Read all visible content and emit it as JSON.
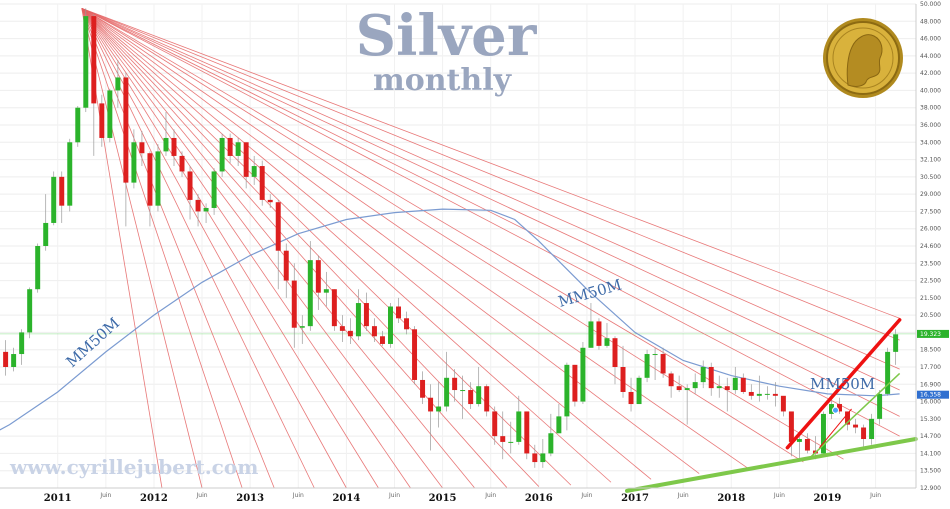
{
  "title": "Silver",
  "subtitle": "monthly",
  "watermark": "www.cyrillejubert.com",
  "chart_data": {
    "type": "candlestick",
    "ylim": [
      12.9,
      50.5
    ],
    "yticks": [
      12.9,
      13.5,
      14.1,
      14.7,
      15.3,
      16.0,
      16.9,
      17.7,
      18.5,
      19.4,
      20.5,
      21.5,
      22.5,
      23.5,
      24.6,
      26.0,
      27.5,
      29.0,
      30.5,
      32.1,
      34.0,
      36.0,
      38.0,
      40.0,
      42.0,
      44.0,
      46.0,
      48.0,
      50.0
    ],
    "ytick_labels": [
      "12.900",
      "13.500",
      "14.100",
      "14.700",
      "15.300",
      "16.000",
      "16.900",
      "17.700",
      "18.500",
      "19.400",
      "20.500",
      "21.500",
      "22.500",
      "23.500",
      "24.600",
      "26.000",
      "27.500",
      "29.000",
      "30.500",
      "32.100",
      "34.000",
      "36.000",
      "38.000",
      "40.000",
      "42.000",
      "44.000",
      "46.000",
      "48.000",
      "50.000"
    ],
    "x_labels": [
      {
        "t": 2011,
        "label": "2011",
        "kind": "year"
      },
      {
        "t": 2011.5,
        "label": "Juin",
        "kind": "month"
      },
      {
        "t": 2012,
        "label": "2012",
        "kind": "year"
      },
      {
        "t": 2012.5,
        "label": "Juin",
        "kind": "month"
      },
      {
        "t": 2013,
        "label": "2013",
        "kind": "year"
      },
      {
        "t": 2013.5,
        "label": "Juin",
        "kind": "month"
      },
      {
        "t": 2014,
        "label": "2014",
        "kind": "year"
      },
      {
        "t": 2014.5,
        "label": "Juin",
        "kind": "month"
      },
      {
        "t": 2015,
        "label": "2015",
        "kind": "year"
      },
      {
        "t": 2015.5,
        "label": "Juin",
        "kind": "month"
      },
      {
        "t": 2016,
        "label": "2016",
        "kind": "year"
      },
      {
        "t": 2016.5,
        "label": "Juin",
        "kind": "month"
      },
      {
        "t": 2017,
        "label": "2017",
        "kind": "year"
      },
      {
        "t": 2017.5,
        "label": "Juin",
        "kind": "month"
      },
      {
        "t": 2018,
        "label": "2018",
        "kind": "year"
      },
      {
        "t": 2018.5,
        "label": "Juin",
        "kind": "month"
      },
      {
        "t": 2019,
        "label": "2019",
        "kind": "year"
      },
      {
        "t": 2019.5,
        "label": "Juin",
        "kind": "month"
      }
    ],
    "candles": [
      {
        "date": "2010-06",
        "o": 18.4,
        "c": 17.7,
        "h": 19.0,
        "l": 17.3
      },
      {
        "date": "2010-07",
        "o": 17.7,
        "c": 18.3,
        "h": 18.6,
        "l": 17.5
      },
      {
        "date": "2010-08",
        "o": 18.3,
        "c": 19.4,
        "h": 19.6,
        "l": 17.8
      },
      {
        "date": "2010-09",
        "o": 19.4,
        "c": 22.0,
        "h": 22.1,
        "l": 19.1
      },
      {
        "date": "2010-10",
        "o": 22.0,
        "c": 24.6,
        "h": 24.8,
        "l": 21.8
      },
      {
        "date": "2010-11",
        "o": 24.6,
        "c": 26.5,
        "h": 29.0,
        "l": 24.3
      },
      {
        "date": "2010-12",
        "o": 26.5,
        "c": 30.5,
        "h": 31.0,
        "l": 26.3
      },
      {
        "date": "2011-01",
        "o": 30.5,
        "c": 28.0,
        "h": 31.0,
        "l": 26.5
      },
      {
        "date": "2011-02",
        "o": 28.0,
        "c": 34.0,
        "h": 34.4,
        "l": 27.5
      },
      {
        "date": "2011-03",
        "o": 34.0,
        "c": 38.0,
        "h": 38.2,
        "l": 33.5
      },
      {
        "date": "2011-04",
        "o": 38.0,
        "c": 48.6,
        "h": 49.5,
        "l": 37.5
      },
      {
        "date": "2011-05",
        "o": 48.6,
        "c": 38.5,
        "h": 48.8,
        "l": 32.5
      },
      {
        "date": "2011-06",
        "o": 38.5,
        "c": 34.5,
        "h": 39.5,
        "l": 33.5
      },
      {
        "date": "2011-07",
        "o": 34.5,
        "c": 40.0,
        "h": 40.2,
        "l": 34.0
      },
      {
        "date": "2011-08",
        "o": 40.0,
        "c": 41.5,
        "h": 43.5,
        "l": 38.0
      },
      {
        "date": "2011-09",
        "o": 41.5,
        "c": 30.0,
        "h": 42.0,
        "l": 26.2
      },
      {
        "date": "2011-10",
        "o": 30.0,
        "c": 34.0,
        "h": 35.5,
        "l": 29.5
      },
      {
        "date": "2011-11",
        "o": 34.0,
        "c": 32.8,
        "h": 35.3,
        "l": 31.5
      },
      {
        "date": "2011-12",
        "o": 32.8,
        "c": 28.0,
        "h": 33.0,
        "l": 26.2
      },
      {
        "date": "2012-01",
        "o": 28.0,
        "c": 33.0,
        "h": 33.8,
        "l": 27.5
      },
      {
        "date": "2012-02",
        "o": 33.0,
        "c": 34.5,
        "h": 37.5,
        "l": 32.5
      },
      {
        "date": "2012-03",
        "o": 34.5,
        "c": 32.5,
        "h": 35.5,
        "l": 31.5
      },
      {
        "date": "2012-04",
        "o": 32.5,
        "c": 31.0,
        "h": 33.0,
        "l": 30.5
      },
      {
        "date": "2012-05",
        "o": 31.0,
        "c": 28.5,
        "h": 31.5,
        "l": 26.8
      },
      {
        "date": "2012-06",
        "o": 28.5,
        "c": 27.5,
        "h": 29.0,
        "l": 26.2
      },
      {
        "date": "2012-07",
        "o": 27.5,
        "c": 27.8,
        "h": 28.2,
        "l": 26.5
      },
      {
        "date": "2012-08",
        "o": 27.8,
        "c": 31.0,
        "h": 31.3,
        "l": 27.2
      },
      {
        "date": "2012-09",
        "o": 31.0,
        "c": 34.5,
        "h": 35.0,
        "l": 30.5
      },
      {
        "date": "2012-10",
        "o": 34.5,
        "c": 32.5,
        "h": 35.0,
        "l": 31.8
      },
      {
        "date": "2012-11",
        "o": 32.5,
        "c": 34.0,
        "h": 34.5,
        "l": 31.5
      },
      {
        "date": "2012-12",
        "o": 34.0,
        "c": 30.5,
        "h": 34.0,
        "l": 29.5
      },
      {
        "date": "2013-01",
        "o": 30.5,
        "c": 31.5,
        "h": 32.5,
        "l": 29.8
      },
      {
        "date": "2013-02",
        "o": 31.5,
        "c": 28.5,
        "h": 32.0,
        "l": 28.0
      },
      {
        "date": "2013-03",
        "o": 28.5,
        "c": 28.3,
        "h": 29.0,
        "l": 27.8
      },
      {
        "date": "2013-04",
        "o": 28.3,
        "c": 24.3,
        "h": 28.5,
        "l": 22.0
      },
      {
        "date": "2013-05",
        "o": 24.3,
        "c": 22.5,
        "h": 24.8,
        "l": 21.5
      },
      {
        "date": "2013-06",
        "o": 22.5,
        "c": 19.7,
        "h": 23.5,
        "l": 18.6
      },
      {
        "date": "2013-07",
        "o": 19.7,
        "c": 19.8,
        "h": 20.5,
        "l": 18.8
      },
      {
        "date": "2013-08",
        "o": 19.8,
        "c": 23.7,
        "h": 25.0,
        "l": 19.5
      },
      {
        "date": "2013-09",
        "o": 23.7,
        "c": 21.8,
        "h": 24.0,
        "l": 20.8
      },
      {
        "date": "2013-10",
        "o": 21.8,
        "c": 22.0,
        "h": 23.0,
        "l": 21.0
      },
      {
        "date": "2013-11",
        "o": 22.0,
        "c": 19.8,
        "h": 22.0,
        "l": 19.5
      },
      {
        "date": "2013-12",
        "o": 19.8,
        "c": 19.5,
        "h": 20.5,
        "l": 18.9
      },
      {
        "date": "2014-01",
        "o": 19.5,
        "c": 19.2,
        "h": 20.3,
        "l": 18.8
      },
      {
        "date": "2014-02",
        "o": 19.2,
        "c": 21.2,
        "h": 22.0,
        "l": 19.0
      },
      {
        "date": "2014-03",
        "o": 21.2,
        "c": 19.8,
        "h": 21.8,
        "l": 19.5
      },
      {
        "date": "2014-04",
        "o": 19.8,
        "c": 19.2,
        "h": 20.3,
        "l": 18.9
      },
      {
        "date": "2014-05",
        "o": 19.2,
        "c": 18.8,
        "h": 19.5,
        "l": 18.7
      },
      {
        "date": "2014-06",
        "o": 18.8,
        "c": 21.0,
        "h": 21.2,
        "l": 18.6
      },
      {
        "date": "2014-07",
        "o": 21.0,
        "c": 20.3,
        "h": 21.5,
        "l": 20.0
      },
      {
        "date": "2014-08",
        "o": 20.3,
        "c": 19.6,
        "h": 20.7,
        "l": 19.3
      },
      {
        "date": "2014-09",
        "o": 19.6,
        "c": 17.1,
        "h": 19.8,
        "l": 16.9
      },
      {
        "date": "2014-10",
        "o": 17.1,
        "c": 16.2,
        "h": 17.5,
        "l": 15.9
      },
      {
        "date": "2014-11",
        "o": 16.2,
        "c": 15.6,
        "h": 16.9,
        "l": 14.2
      },
      {
        "date": "2014-12",
        "o": 15.6,
        "c": 15.8,
        "h": 17.0,
        "l": 15.0
      },
      {
        "date": "2015-01",
        "o": 15.8,
        "c": 17.2,
        "h": 18.4,
        "l": 15.6
      },
      {
        "date": "2015-02",
        "o": 17.2,
        "c": 16.6,
        "h": 17.6,
        "l": 16.0
      },
      {
        "date": "2015-03",
        "o": 16.6,
        "c": 16.6,
        "h": 17.3,
        "l": 15.3
      },
      {
        "date": "2015-04",
        "o": 16.6,
        "c": 15.9,
        "h": 17.0,
        "l": 15.7
      },
      {
        "date": "2015-05",
        "o": 15.9,
        "c": 16.8,
        "h": 17.7,
        "l": 15.8
      },
      {
        "date": "2015-06",
        "o": 16.8,
        "c": 15.6,
        "h": 16.9,
        "l": 15.4
      },
      {
        "date": "2015-07",
        "o": 15.6,
        "c": 14.7,
        "h": 15.8,
        "l": 14.4
      },
      {
        "date": "2015-08",
        "o": 14.7,
        "c": 14.5,
        "h": 15.6,
        "l": 13.9
      },
      {
        "date": "2015-09",
        "o": 14.5,
        "c": 14.5,
        "h": 15.2,
        "l": 14.1
      },
      {
        "date": "2015-10",
        "o": 14.5,
        "c": 15.6,
        "h": 16.3,
        "l": 14.4
      },
      {
        "date": "2015-11",
        "o": 15.6,
        "c": 14.1,
        "h": 15.6,
        "l": 13.9
      },
      {
        "date": "2015-12",
        "o": 14.1,
        "c": 13.8,
        "h": 14.4,
        "l": 13.6
      },
      {
        "date": "2016-01",
        "o": 13.8,
        "c": 14.1,
        "h": 14.6,
        "l": 13.6
      },
      {
        "date": "2016-02",
        "o": 14.1,
        "c": 14.8,
        "h": 15.5,
        "l": 14.0
      },
      {
        "date": "2016-03",
        "o": 14.8,
        "c": 15.4,
        "h": 15.9,
        "l": 14.8
      },
      {
        "date": "2016-04",
        "o": 15.4,
        "c": 17.8,
        "h": 17.9,
        "l": 14.9
      },
      {
        "date": "2016-05",
        "o": 17.8,
        "c": 16.0,
        "h": 17.8,
        "l": 15.8
      },
      {
        "date": "2016-06",
        "o": 16.0,
        "c": 18.6,
        "h": 18.9,
        "l": 15.9
      },
      {
        "date": "2016-07",
        "o": 18.6,
        "c": 20.1,
        "h": 21.2,
        "l": 18.6
      },
      {
        "date": "2016-08",
        "o": 20.1,
        "c": 18.7,
        "h": 20.3,
        "l": 18.5
      },
      {
        "date": "2016-09",
        "o": 18.7,
        "c": 19.1,
        "h": 20.0,
        "l": 18.6
      },
      {
        "date": "2016-10",
        "o": 19.1,
        "c": 17.7,
        "h": 19.2,
        "l": 16.9
      },
      {
        "date": "2016-11",
        "o": 17.7,
        "c": 16.5,
        "h": 18.7,
        "l": 16.2
      },
      {
        "date": "2016-12",
        "o": 16.5,
        "c": 15.9,
        "h": 17.2,
        "l": 15.6
      },
      {
        "date": "2017-01",
        "o": 15.9,
        "c": 17.2,
        "h": 17.3,
        "l": 15.9
      },
      {
        "date": "2017-02",
        "o": 17.2,
        "c": 18.3,
        "h": 18.5,
        "l": 17.0
      },
      {
        "date": "2017-03",
        "o": 18.3,
        "c": 18.3,
        "h": 18.6,
        "l": 17.1
      },
      {
        "date": "2017-04",
        "o": 18.3,
        "c": 17.4,
        "h": 18.6,
        "l": 17.2
      },
      {
        "date": "2017-05",
        "o": 17.4,
        "c": 16.8,
        "h": 17.5,
        "l": 16.2
      },
      {
        "date": "2017-06",
        "o": 16.8,
        "c": 16.6,
        "h": 17.3,
        "l": 16.5
      },
      {
        "date": "2017-07",
        "o": 16.6,
        "c": 16.7,
        "h": 16.9,
        "l": 15.1
      },
      {
        "date": "2017-08",
        "o": 16.7,
        "c": 17.0,
        "h": 17.4,
        "l": 16.4
      },
      {
        "date": "2017-09",
        "o": 17.0,
        "c": 17.7,
        "h": 18.0,
        "l": 16.7
      },
      {
        "date": "2017-10",
        "o": 17.7,
        "c": 16.7,
        "h": 17.9,
        "l": 16.3
      },
      {
        "date": "2017-11",
        "o": 16.7,
        "c": 16.8,
        "h": 17.3,
        "l": 16.2
      },
      {
        "date": "2017-12",
        "o": 16.8,
        "c": 16.6,
        "h": 17.2,
        "l": 15.6
      },
      {
        "date": "2018-01",
        "o": 16.6,
        "c": 17.2,
        "h": 17.7,
        "l": 16.4
      },
      {
        "date": "2018-02",
        "o": 17.2,
        "c": 16.5,
        "h": 17.4,
        "l": 16.4
      },
      {
        "date": "2018-03",
        "o": 16.5,
        "c": 16.3,
        "h": 16.9,
        "l": 16.1
      },
      {
        "date": "2018-04",
        "o": 16.3,
        "c": 16.4,
        "h": 17.3,
        "l": 16.0
      },
      {
        "date": "2018-05",
        "o": 16.4,
        "c": 16.4,
        "h": 16.8,
        "l": 16.1
      },
      {
        "date": "2018-06",
        "o": 16.4,
        "c": 16.3,
        "h": 17.0,
        "l": 15.8
      },
      {
        "date": "2018-07",
        "o": 16.3,
        "c": 15.6,
        "h": 16.0,
        "l": 15.4
      },
      {
        "date": "2018-08",
        "o": 15.6,
        "c": 14.5,
        "h": 15.4,
        "l": 14.0
      },
      {
        "date": "2018-09",
        "o": 14.5,
        "c": 14.6,
        "h": 14.8,
        "l": 13.9
      },
      {
        "date": "2018-10",
        "o": 14.6,
        "c": 14.2,
        "h": 14.8,
        "l": 14.1
      },
      {
        "date": "2018-11",
        "o": 14.2,
        "c": 14.1,
        "h": 14.7,
        "l": 13.9
      },
      {
        "date": "2018-12",
        "o": 14.1,
        "c": 15.5,
        "h": 15.6,
        "l": 14.1
      },
      {
        "date": "2019-01",
        "o": 15.5,
        "c": 15.9,
        "h": 16.2,
        "l": 15.3
      },
      {
        "date": "2019-02",
        "o": 15.9,
        "c": 15.6,
        "h": 16.2,
        "l": 15.5
      },
      {
        "date": "2019-03",
        "o": 15.6,
        "c": 15.1,
        "h": 15.6,
        "l": 14.9
      },
      {
        "date": "2019-04",
        "o": 15.1,
        "c": 15.0,
        "h": 15.3,
        "l": 14.8
      },
      {
        "date": "2019-05",
        "o": 15.0,
        "c": 14.6,
        "h": 15.1,
        "l": 14.3
      },
      {
        "date": "2019-06",
        "o": 14.6,
        "c": 15.3,
        "h": 15.5,
        "l": 14.4
      },
      {
        "date": "2019-07",
        "o": 15.3,
        "c": 16.4,
        "h": 16.6,
        "l": 15.1
      },
      {
        "date": "2019-08",
        "o": 16.4,
        "c": 18.4,
        "h": 18.6,
        "l": 16.3
      },
      {
        "date": "2019-09",
        "o": 18.4,
        "c": 19.3,
        "h": 19.6,
        "l": 17.8
      }
    ],
    "ma_label": "MM50M",
    "ma50": [
      {
        "date": "2010-01",
        "v": 14.2
      },
      {
        "date": "2010-07",
        "v": 15.1
      },
      {
        "date": "2011-01",
        "v": 16.5
      },
      {
        "date": "2011-07",
        "v": 18.4
      },
      {
        "date": "2012-01",
        "v": 20.5
      },
      {
        "date": "2012-07",
        "v": 22.4
      },
      {
        "date": "2013-01",
        "v": 24.0
      },
      {
        "date": "2013-07",
        "v": 25.6
      },
      {
        "date": "2014-01",
        "v": 26.8
      },
      {
        "date": "2014-07",
        "v": 27.4
      },
      {
        "date": "2015-01",
        "v": 27.7
      },
      {
        "date": "2015-07",
        "v": 27.6
      },
      {
        "date": "2015-10",
        "v": 26.8
      },
      {
        "date": "2016-01",
        "v": 25.0
      },
      {
        "date": "2016-07",
        "v": 22.0
      },
      {
        "date": "2017-01",
        "v": 19.4
      },
      {
        "date": "2017-07",
        "v": 18.0
      },
      {
        "date": "2018-01",
        "v": 17.3
      },
      {
        "date": "2018-07",
        "v": 16.8
      },
      {
        "date": "2019-01",
        "v": 16.4
      },
      {
        "date": "2019-07",
        "v": 16.3
      },
      {
        "date": "2019-10",
        "v": 16.4
      }
    ],
    "current_price": {
      "value": 19.323,
      "label": "19.323"
    },
    "ma_price": {
      "value": 16.358,
      "label": "16.358"
    },
    "support_line": [
      {
        "date": "2016-12",
        "v": 12.8
      },
      {
        "date": "2019-12",
        "v": 14.6
      }
    ],
    "resistance_line": [
      {
        "date": "2018-08",
        "v": 14.3
      },
      {
        "date": "2019-10",
        "v": 20.2
      }
    ],
    "fan_apex": {
      "date": "2011-04",
      "v": 49.5
    },
    "fan_targets": [
      {
        "date": "2019-10",
        "v": 20.3
      },
      {
        "date": "2019-10",
        "v": 19.0
      },
      {
        "date": "2019-10",
        "v": 17.6
      },
      {
        "date": "2019-10",
        "v": 16.6
      },
      {
        "date": "2019-10",
        "v": 15.4
      },
      {
        "date": "2019-10",
        "v": 14.7
      },
      {
        "date": "2019-03",
        "v": 13.9
      },
      {
        "date": "2018-10",
        "v": 13.8
      },
      {
        "date": "2018-03",
        "v": 13.6
      },
      {
        "date": "2017-09",
        "v": 13.4
      },
      {
        "date": "2017-03",
        "v": 13.2
      },
      {
        "date": "2016-10",
        "v": 13.1
      },
      {
        "date": "2016-05",
        "v": 13.0
      },
      {
        "date": "2016-01",
        "v": 12.95
      },
      {
        "date": "2015-09",
        "v": 12.92
      },
      {
        "date": "2015-05",
        "v": 12.9
      },
      {
        "date": "2015-01",
        "v": 12.9
      },
      {
        "date": "2014-09",
        "v": 12.9
      },
      {
        "date": "2014-05",
        "v": 12.9
      },
      {
        "date": "2014-01",
        "v": 12.9
      },
      {
        "date": "2013-09",
        "v": 12.9
      },
      {
        "date": "2013-04",
        "v": 12.9
      },
      {
        "date": "2012-12",
        "v": 12.9
      },
      {
        "date": "2012-07",
        "v": 12.9
      },
      {
        "date": "2012-02",
        "v": 12.9
      }
    ],
    "colors": {
      "up": "#2bb32b",
      "down": "#dd1f1f",
      "ma": "#7b9bd1",
      "fan": "#e46060",
      "trend_red": "#ee1111",
      "trend_green": "#7ec84a",
      "price_tag": "#2f6fd0",
      "title": "#9aa6bf"
    },
    "grid": true
  }
}
